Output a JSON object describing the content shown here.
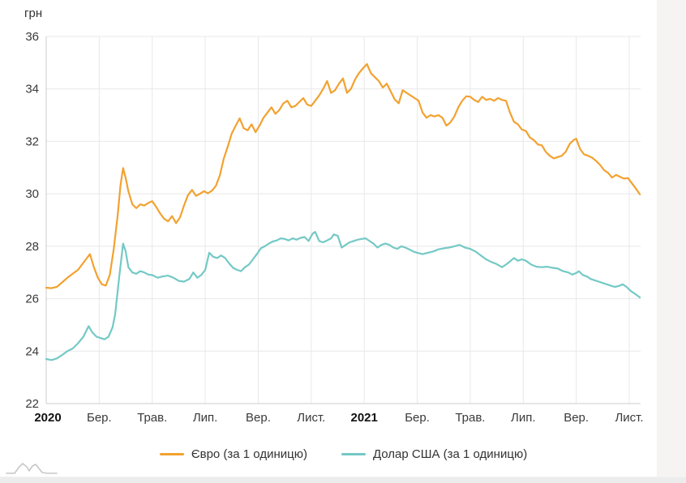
{
  "page": {
    "unit_label": "грн"
  },
  "legend": {
    "items": [
      {
        "label": "Євро (за 1 одиницю)"
      },
      {
        "label": "Долар США (за 1 одиницю)"
      }
    ]
  },
  "colors": {
    "euro": "#f2a230",
    "usd": "#74c9c5",
    "grid": "#e8e8e8",
    "axis": "#cccccc",
    "tick_text": "#3a3a3a",
    "year_text": "#111111"
  },
  "chart_data": {
    "type": "line",
    "title": "",
    "ylabel": "грн",
    "xlabel": "",
    "grid": true,
    "legend_position": "bottom",
    "ylim": [
      22,
      36
    ],
    "y_ticks": [
      36,
      34,
      32,
      30,
      28,
      26,
      24,
      22
    ],
    "x_unit": "months since Jan 2020",
    "x_ticks": [
      {
        "m": 0,
        "label": "2020",
        "bold": true
      },
      {
        "m": 2,
        "label": "Бер.",
        "bold": false
      },
      {
        "m": 4,
        "label": "Трав.",
        "bold": false
      },
      {
        "m": 6,
        "label": "Лип.",
        "bold": false
      },
      {
        "m": 8,
        "label": "Вер.",
        "bold": false
      },
      {
        "m": 10,
        "label": "Лист.",
        "bold": false
      },
      {
        "m": 12,
        "label": "2021",
        "bold": true
      },
      {
        "m": 14,
        "label": "Бер.",
        "bold": false
      },
      {
        "m": 16,
        "label": "Трав.",
        "bold": false
      },
      {
        "m": 18,
        "label": "Лип.",
        "bold": false
      },
      {
        "m": 20,
        "label": "Вер.",
        "bold": false
      },
      {
        "m": 22,
        "label": "Лист.",
        "bold": false
      }
    ],
    "series": [
      {
        "key": "euro",
        "name": "Євро (за 1 одиницю)",
        "color": "#f2a230",
        "points": [
          [
            0.0,
            26.42
          ],
          [
            0.2,
            26.4
          ],
          [
            0.4,
            26.45
          ],
          [
            0.6,
            26.62
          ],
          [
            0.8,
            26.8
          ],
          [
            1.0,
            26.95
          ],
          [
            1.2,
            27.1
          ],
          [
            1.35,
            27.3
          ],
          [
            1.5,
            27.5
          ],
          [
            1.65,
            27.7
          ],
          [
            1.8,
            27.2
          ],
          [
            1.95,
            26.8
          ],
          [
            2.1,
            26.55
          ],
          [
            2.25,
            26.5
          ],
          [
            2.4,
            26.9
          ],
          [
            2.55,
            27.9
          ],
          [
            2.7,
            29.2
          ],
          [
            2.8,
            30.3
          ],
          [
            2.9,
            30.98
          ],
          [
            3.0,
            30.6
          ],
          [
            3.1,
            30.1
          ],
          [
            3.25,
            29.6
          ],
          [
            3.4,
            29.45
          ],
          [
            3.55,
            29.6
          ],
          [
            3.7,
            29.55
          ],
          [
            3.85,
            29.65
          ],
          [
            4.0,
            29.72
          ],
          [
            4.15,
            29.5
          ],
          [
            4.3,
            29.25
          ],
          [
            4.45,
            29.05
          ],
          [
            4.6,
            28.95
          ],
          [
            4.75,
            29.15
          ],
          [
            4.9,
            28.88
          ],
          [
            5.05,
            29.1
          ],
          [
            5.2,
            29.55
          ],
          [
            5.35,
            29.95
          ],
          [
            5.5,
            30.15
          ],
          [
            5.65,
            29.92
          ],
          [
            5.8,
            30.0
          ],
          [
            5.95,
            30.1
          ],
          [
            6.1,
            30.02
          ],
          [
            6.25,
            30.12
          ],
          [
            6.4,
            30.3
          ],
          [
            6.55,
            30.7
          ],
          [
            6.7,
            31.35
          ],
          [
            6.85,
            31.8
          ],
          [
            7.0,
            32.3
          ],
          [
            7.15,
            32.6
          ],
          [
            7.3,
            32.88
          ],
          [
            7.45,
            32.5
          ],
          [
            7.6,
            32.42
          ],
          [
            7.75,
            32.65
          ],
          [
            7.9,
            32.35
          ],
          [
            8.05,
            32.6
          ],
          [
            8.2,
            32.9
          ],
          [
            8.35,
            33.1
          ],
          [
            8.5,
            33.3
          ],
          [
            8.65,
            33.05
          ],
          [
            8.8,
            33.2
          ],
          [
            8.95,
            33.45
          ],
          [
            9.1,
            33.55
          ],
          [
            9.25,
            33.3
          ],
          [
            9.4,
            33.35
          ],
          [
            9.55,
            33.5
          ],
          [
            9.7,
            33.65
          ],
          [
            9.85,
            33.4
          ],
          [
            10.0,
            33.35
          ],
          [
            10.15,
            33.55
          ],
          [
            10.3,
            33.75
          ],
          [
            10.45,
            34.0
          ],
          [
            10.6,
            34.3
          ],
          [
            10.75,
            33.85
          ],
          [
            10.9,
            33.95
          ],
          [
            11.05,
            34.2
          ],
          [
            11.2,
            34.4
          ],
          [
            11.35,
            33.85
          ],
          [
            11.5,
            34.0
          ],
          [
            11.65,
            34.35
          ],
          [
            11.8,
            34.6
          ],
          [
            11.95,
            34.78
          ],
          [
            12.1,
            34.95
          ],
          [
            12.25,
            34.6
          ],
          [
            12.4,
            34.45
          ],
          [
            12.55,
            34.3
          ],
          [
            12.7,
            34.05
          ],
          [
            12.85,
            34.2
          ],
          [
            13.0,
            33.9
          ],
          [
            13.15,
            33.6
          ],
          [
            13.3,
            33.45
          ],
          [
            13.45,
            33.95
          ],
          [
            13.6,
            33.85
          ],
          [
            13.75,
            33.75
          ],
          [
            13.9,
            33.65
          ],
          [
            14.05,
            33.55
          ],
          [
            14.2,
            33.1
          ],
          [
            14.35,
            32.9
          ],
          [
            14.5,
            33.0
          ],
          [
            14.65,
            32.95
          ],
          [
            14.8,
            33.0
          ],
          [
            14.95,
            32.9
          ],
          [
            15.1,
            32.6
          ],
          [
            15.25,
            32.72
          ],
          [
            15.4,
            32.95
          ],
          [
            15.55,
            33.3
          ],
          [
            15.7,
            33.55
          ],
          [
            15.85,
            33.72
          ],
          [
            16.0,
            33.7
          ],
          [
            16.15,
            33.58
          ],
          [
            16.3,
            33.5
          ],
          [
            16.45,
            33.7
          ],
          [
            16.6,
            33.58
          ],
          [
            16.75,
            33.62
          ],
          [
            16.9,
            33.55
          ],
          [
            17.05,
            33.65
          ],
          [
            17.2,
            33.58
          ],
          [
            17.35,
            33.55
          ],
          [
            17.5,
            33.1
          ],
          [
            17.65,
            32.75
          ],
          [
            17.8,
            32.65
          ],
          [
            17.95,
            32.45
          ],
          [
            18.1,
            32.4
          ],
          [
            18.25,
            32.15
          ],
          [
            18.4,
            32.05
          ],
          [
            18.55,
            31.88
          ],
          [
            18.7,
            31.85
          ],
          [
            18.85,
            31.6
          ],
          [
            19.0,
            31.45
          ],
          [
            19.15,
            31.35
          ],
          [
            19.3,
            31.4
          ],
          [
            19.45,
            31.45
          ],
          [
            19.6,
            31.6
          ],
          [
            19.75,
            31.9
          ],
          [
            19.9,
            32.05
          ],
          [
            20.0,
            32.1
          ],
          [
            20.15,
            31.7
          ],
          [
            20.3,
            31.5
          ],
          [
            20.45,
            31.45
          ],
          [
            20.6,
            31.38
          ],
          [
            20.75,
            31.25
          ],
          [
            20.9,
            31.1
          ],
          [
            21.05,
            30.9
          ],
          [
            21.2,
            30.8
          ],
          [
            21.35,
            30.62
          ],
          [
            21.5,
            30.72
          ],
          [
            21.65,
            30.65
          ],
          [
            21.8,
            30.58
          ],
          [
            21.95,
            30.6
          ],
          [
            22.1,
            30.4
          ],
          [
            22.25,
            30.2
          ],
          [
            22.4,
            29.98
          ]
        ]
      },
      {
        "key": "usd",
        "name": "Долар США (за 1 одиницю)",
        "color": "#74c9c5",
        "points": [
          [
            0.0,
            23.7
          ],
          [
            0.2,
            23.66
          ],
          [
            0.4,
            23.72
          ],
          [
            0.6,
            23.85
          ],
          [
            0.8,
            24.0
          ],
          [
            1.0,
            24.1
          ],
          [
            1.2,
            24.3
          ],
          [
            1.4,
            24.55
          ],
          [
            1.6,
            24.95
          ],
          [
            1.75,
            24.7
          ],
          [
            1.9,
            24.55
          ],
          [
            2.05,
            24.5
          ],
          [
            2.2,
            24.45
          ],
          [
            2.35,
            24.55
          ],
          [
            2.5,
            24.9
          ],
          [
            2.6,
            25.4
          ],
          [
            2.75,
            26.8
          ],
          [
            2.9,
            28.1
          ],
          [
            3.0,
            27.8
          ],
          [
            3.1,
            27.2
          ],
          [
            3.25,
            27.0
          ],
          [
            3.4,
            26.95
          ],
          [
            3.55,
            27.05
          ],
          [
            3.7,
            27.0
          ],
          [
            3.85,
            26.92
          ],
          [
            4.0,
            26.9
          ],
          [
            4.2,
            26.8
          ],
          [
            4.4,
            26.85
          ],
          [
            4.6,
            26.88
          ],
          [
            4.8,
            26.8
          ],
          [
            5.0,
            26.68
          ],
          [
            5.2,
            26.65
          ],
          [
            5.4,
            26.75
          ],
          [
            5.55,
            27.0
          ],
          [
            5.7,
            26.8
          ],
          [
            5.85,
            26.9
          ],
          [
            6.0,
            27.1
          ],
          [
            6.15,
            27.75
          ],
          [
            6.3,
            27.6
          ],
          [
            6.45,
            27.55
          ],
          [
            6.6,
            27.65
          ],
          [
            6.75,
            27.55
          ],
          [
            6.9,
            27.35
          ],
          [
            7.05,
            27.18
          ],
          [
            7.2,
            27.1
          ],
          [
            7.35,
            27.05
          ],
          [
            7.5,
            27.2
          ],
          [
            7.65,
            27.3
          ],
          [
            7.8,
            27.5
          ],
          [
            7.95,
            27.7
          ],
          [
            8.1,
            27.92
          ],
          [
            8.25,
            28.0
          ],
          [
            8.4,
            28.1
          ],
          [
            8.55,
            28.18
          ],
          [
            8.7,
            28.22
          ],
          [
            8.85,
            28.3
          ],
          [
            9.0,
            28.28
          ],
          [
            9.15,
            28.22
          ],
          [
            9.3,
            28.3
          ],
          [
            9.45,
            28.25
          ],
          [
            9.6,
            28.32
          ],
          [
            9.75,
            28.35
          ],
          [
            9.9,
            28.2
          ],
          [
            10.05,
            28.48
          ],
          [
            10.15,
            28.55
          ],
          [
            10.3,
            28.2
          ],
          [
            10.45,
            28.15
          ],
          [
            10.6,
            28.22
          ],
          [
            10.75,
            28.3
          ],
          [
            10.85,
            28.45
          ],
          [
            11.0,
            28.4
          ],
          [
            11.15,
            27.95
          ],
          [
            11.3,
            28.05
          ],
          [
            11.45,
            28.15
          ],
          [
            11.6,
            28.2
          ],
          [
            11.75,
            28.25
          ],
          [
            11.9,
            28.28
          ],
          [
            12.05,
            28.3
          ],
          [
            12.2,
            28.2
          ],
          [
            12.35,
            28.1
          ],
          [
            12.5,
            27.95
          ],
          [
            12.65,
            28.05
          ],
          [
            12.8,
            28.1
          ],
          [
            12.95,
            28.05
          ],
          [
            13.1,
            27.95
          ],
          [
            13.25,
            27.9
          ],
          [
            13.4,
            28.0
          ],
          [
            13.55,
            27.95
          ],
          [
            13.7,
            27.88
          ],
          [
            13.85,
            27.8
          ],
          [
            14.0,
            27.75
          ],
          [
            14.2,
            27.7
          ],
          [
            14.4,
            27.75
          ],
          [
            14.6,
            27.8
          ],
          [
            14.8,
            27.88
          ],
          [
            15.0,
            27.92
          ],
          [
            15.2,
            27.95
          ],
          [
            15.4,
            28.0
          ],
          [
            15.6,
            28.05
          ],
          [
            15.8,
            27.95
          ],
          [
            16.0,
            27.9
          ],
          [
            16.2,
            27.8
          ],
          [
            16.4,
            27.65
          ],
          [
            16.6,
            27.5
          ],
          [
            16.8,
            27.4
          ],
          [
            17.0,
            27.32
          ],
          [
            17.2,
            27.2
          ],
          [
            17.35,
            27.3
          ],
          [
            17.5,
            27.42
          ],
          [
            17.65,
            27.55
          ],
          [
            17.8,
            27.45
          ],
          [
            17.95,
            27.5
          ],
          [
            18.1,
            27.45
          ],
          [
            18.3,
            27.3
          ],
          [
            18.5,
            27.22
          ],
          [
            18.7,
            27.2
          ],
          [
            18.9,
            27.22
          ],
          [
            19.1,
            27.18
          ],
          [
            19.3,
            27.15
          ],
          [
            19.5,
            27.05
          ],
          [
            19.7,
            27.0
          ],
          [
            19.85,
            26.92
          ],
          [
            20.0,
            26.98
          ],
          [
            20.1,
            27.05
          ],
          [
            20.25,
            26.9
          ],
          [
            20.4,
            26.85
          ],
          [
            20.55,
            26.75
          ],
          [
            20.7,
            26.7
          ],
          [
            20.85,
            26.65
          ],
          [
            21.0,
            26.6
          ],
          [
            21.15,
            26.55
          ],
          [
            21.3,
            26.5
          ],
          [
            21.45,
            26.45
          ],
          [
            21.6,
            26.48
          ],
          [
            21.75,
            26.55
          ],
          [
            21.9,
            26.45
          ],
          [
            22.05,
            26.3
          ],
          [
            22.2,
            26.2
          ],
          [
            22.4,
            26.05
          ]
        ]
      }
    ]
  }
}
